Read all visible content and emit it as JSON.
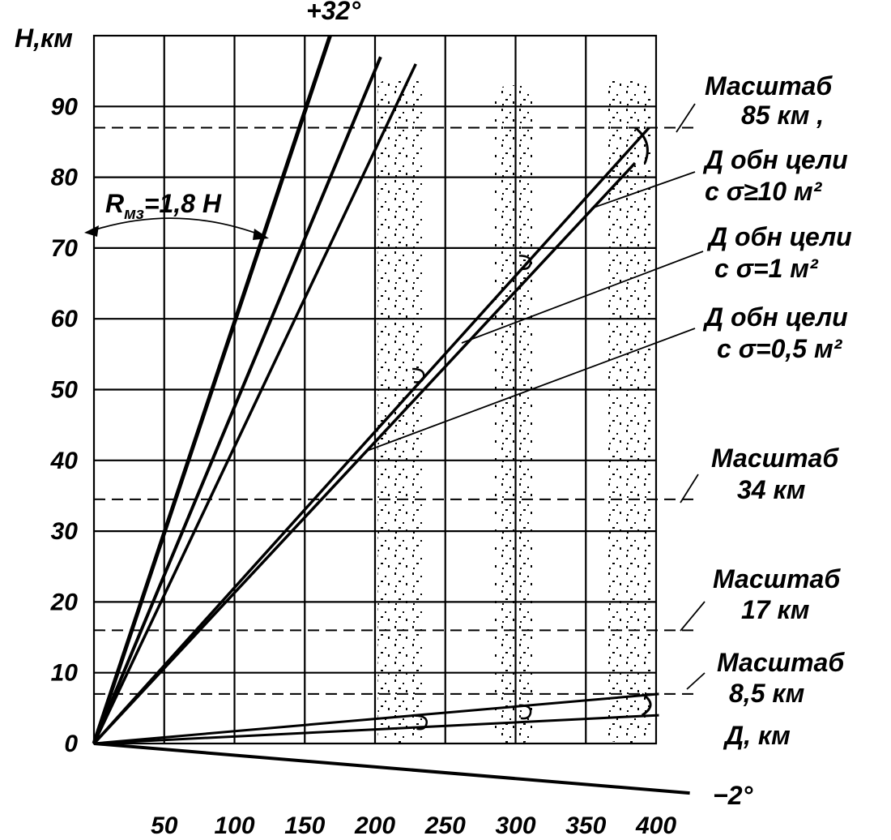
{
  "chart_data": {
    "type": "line",
    "ylabel": "Н,км",
    "xlabel": "Д, км",
    "xlim": [
      0,
      400
    ],
    "ylim": [
      0,
      100
    ],
    "x_ticks": [
      50,
      100,
      150,
      200,
      250,
      300,
      350,
      400
    ],
    "y_ticks": [
      0,
      10,
      20,
      30,
      40,
      50,
      60,
      70,
      80,
      90
    ],
    "angle_upper_label": "+32°",
    "angle_lower_label": "−2°",
    "rmz_label": "R",
    "rmz_subscript": "мз",
    "rmz_formula": "=1,8 Н",
    "series": [
      {
        "x": [
          0,
          168
        ],
        "y": [
          0,
          100
        ]
      },
      {
        "x": [
          0,
          204
        ],
        "y": [
          0,
          97
        ]
      },
      {
        "x": [
          0,
          229
        ],
        "y": [
          0,
          96
        ]
      },
      {
        "x": [
          0,
          395
        ],
        "y": [
          0,
          87
        ]
      },
      {
        "x": [
          0,
          385
        ],
        "y": [
          0,
          82
        ]
      },
      {
        "x": [
          0,
          402
        ],
        "y": [
          0,
          7
        ]
      },
      {
        "x": [
          0,
          402
        ],
        "y": [
          0,
          4
        ]
      },
      {
        "x": [
          0,
          424
        ],
        "y": [
          0,
          -7
        ]
      }
    ],
    "markers": [
      {
        "x": 230,
        "y": 52
      },
      {
        "x": 306,
        "y": 68
      },
      {
        "x": 306,
        "y": 4.5
      },
      {
        "x": 232,
        "y": 3
      }
    ],
    "scale_lines": [
      {
        "label": "Масштаб",
        "value": "85 км ,",
        "y": 87
      },
      {
        "label": "Масштаб",
        "value": "34 км",
        "y": 34.5
      },
      {
        "label": "Масштаб",
        "value": "17 км",
        "y": 16
      },
      {
        "label": "Масштаб",
        "value": "8,5 км",
        "y": 7
      }
    ],
    "detection_labels": [
      {
        "line1": "Д обн цели",
        "line2": "с σ≥10 м²"
      },
      {
        "line1": "Д обн цели",
        "line2": "с σ=1 м²"
      },
      {
        "line1": "Д обн цели",
        "line2": "с σ=0,5 м²"
      }
    ],
    "zones": [
      {
        "x_from": 202,
        "x_to": 234,
        "top": 94
      },
      {
        "x_from": 285,
        "x_to": 314,
        "top": 93
      },
      {
        "x_from": 364,
        "x_to": 396,
        "top": 94
      }
    ]
  }
}
